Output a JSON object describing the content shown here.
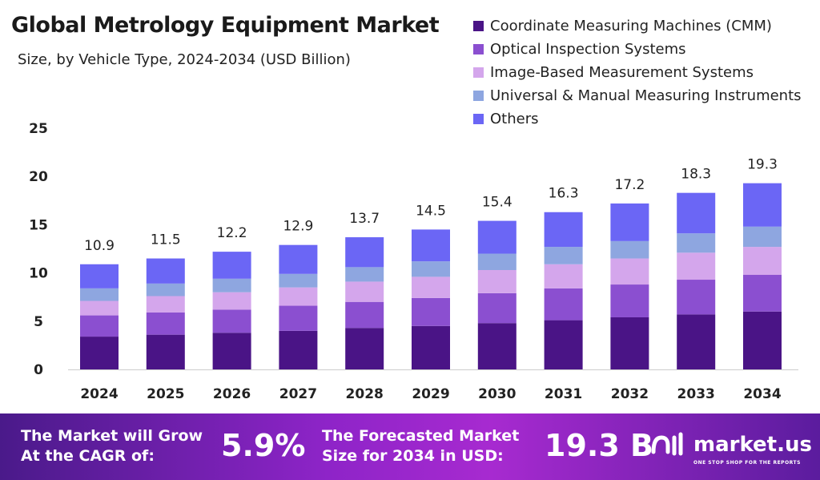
{
  "chart_data": {
    "type": "bar",
    "stacked": true,
    "title": "Global Metrology Equipment Market",
    "subtitle": "Size, by Vehicle Type, 2024-2034 (USD Billion)",
    "categories": [
      "2024",
      "2025",
      "2026",
      "2027",
      "2028",
      "2029",
      "2030",
      "2031",
      "2032",
      "2033",
      "2034"
    ],
    "totals": [
      "10.9",
      "11.5",
      "12.2",
      "12.9",
      "13.7",
      "14.5",
      "15.4",
      "16.3",
      "17.2",
      "18.3",
      "19.3"
    ],
    "series": [
      {
        "name": "Coordinate Measuring Machines (CMM)",
        "color": "#4a1486",
        "values": [
          3.4,
          3.6,
          3.8,
          4.0,
          4.3,
          4.5,
          4.8,
          5.1,
          5.4,
          5.7,
          6.0
        ]
      },
      {
        "name": "Optical Inspection Systems",
        "color": "#8b4fd0",
        "values": [
          2.2,
          2.3,
          2.4,
          2.6,
          2.7,
          2.9,
          3.1,
          3.3,
          3.4,
          3.6,
          3.8
        ]
      },
      {
        "name": "Image-Based Measurement Systems",
        "color": "#d4a6ec",
        "values": [
          1.5,
          1.7,
          1.8,
          1.9,
          2.1,
          2.2,
          2.4,
          2.5,
          2.7,
          2.8,
          2.9
        ]
      },
      {
        "name": "Universal & Manual Measuring Instruments",
        "color": "#8ea6e0",
        "values": [
          1.3,
          1.3,
          1.4,
          1.4,
          1.5,
          1.6,
          1.7,
          1.8,
          1.8,
          2.0,
          2.1
        ]
      },
      {
        "name": "Others",
        "color": "#6b66f5",
        "values": [
          2.5,
          2.6,
          2.8,
          3.0,
          3.1,
          3.3,
          3.4,
          3.6,
          3.9,
          4.2,
          4.5
        ]
      }
    ],
    "yticks": [
      "0",
      "5",
      "10",
      "15",
      "20",
      "25"
    ],
    "ylim": [
      0,
      25
    ],
    "grid": false,
    "legend": "top-right"
  },
  "banner": {
    "cagr_label_1": "The Market will Grow",
    "cagr_label_2": "At the CAGR of:",
    "cagr_value": "5.9%",
    "forecast_label_1": "The Forecasted Market",
    "forecast_label_2": "Size for 2034 in USD:",
    "forecast_value": "19.3 B",
    "logo": "market.us",
    "logo_tagline": "ONE STOP SHOP FOR THE REPORTS"
  }
}
